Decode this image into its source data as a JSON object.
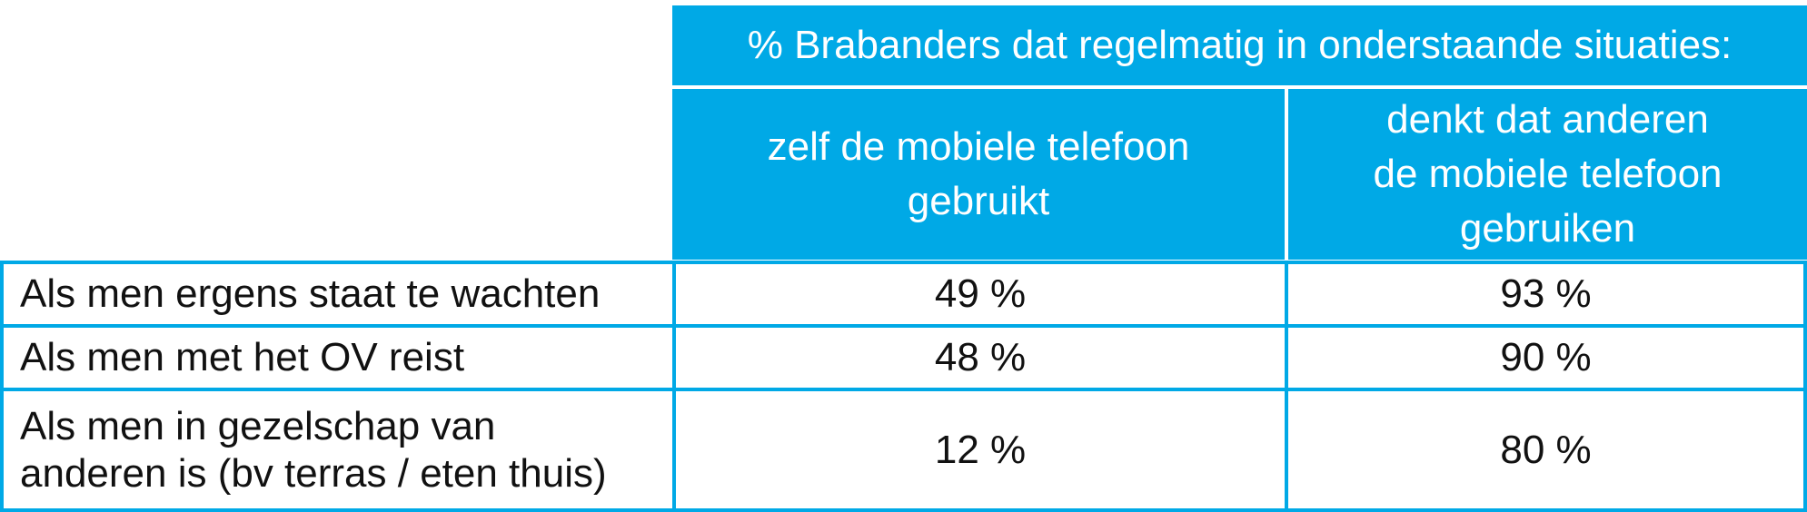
{
  "table": {
    "header_top": "% Brabanders dat regelmatig in onderstaande situaties:",
    "columns": [
      "zelf de mobiele telefoon\ngebruikt",
      "denkt dat anderen\nde mobiele telefoon\ngebruiken"
    ],
    "rows": [
      {
        "label": "Als men ergens staat te wachten",
        "self": "49 %",
        "others": "93 %"
      },
      {
        "label": "Als men met het OV reist",
        "self": "48 %",
        "others": "90 %"
      },
      {
        "label": "Als men in gezelschap van\nanderen is (bv terras / eten thuis)",
        "self": "12 %",
        "others": "80 %"
      }
    ]
  },
  "colors": {
    "accent": "#00a9e6",
    "header_text": "#ffffff",
    "body_text": "#111111"
  }
}
